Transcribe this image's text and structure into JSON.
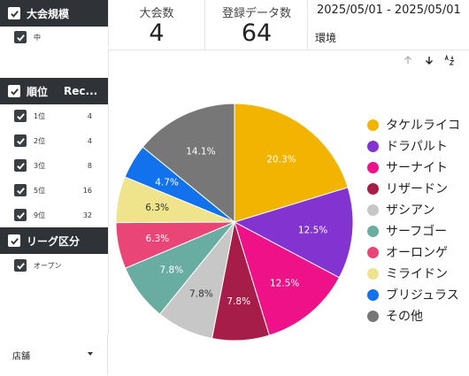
{
  "filters": {
    "tournament_scale": {
      "header": "大会規模",
      "items": [
        {
          "label": "中",
          "checked": true
        }
      ]
    },
    "rank": {
      "header": "順位",
      "header_col2": "Rec...",
      "items": [
        {
          "label": "1位",
          "count": "4",
          "checked": true
        },
        {
          "label": "2位",
          "count": "4",
          "checked": true
        },
        {
          "label": "3位",
          "count": "8",
          "checked": true
        },
        {
          "label": "5位",
          "count": "16",
          "checked": true
        },
        {
          "label": "9位",
          "count": "32",
          "checked": true
        }
      ]
    },
    "league": {
      "header": "リーグ区分",
      "items": [
        {
          "label": "オープン",
          "checked": true
        }
      ]
    },
    "store": {
      "label": "店舗"
    }
  },
  "scorecards": {
    "tournaments": {
      "label": "大会数",
      "value": "4"
    },
    "records": {
      "label": "登録データ数",
      "value": "64"
    }
  },
  "date_range": "2025/05/01 - 2025/05/01",
  "env_label": "環境",
  "toolbar_icons": [
    "arrow-up-icon",
    "arrow-down-icon",
    "sort-az-icon"
  ],
  "chart_data": {
    "type": "pie",
    "series": [
      {
        "name": "タケルライコ",
        "value": 20.3,
        "label": "20.3%",
        "color": "#f2b400"
      },
      {
        "name": "ドラパルト",
        "value": 12.5,
        "label": "12.5%",
        "color": "#8333d0"
      },
      {
        "name": "サーナイト",
        "value": 12.5,
        "label": "12.5%",
        "color": "#ee1188"
      },
      {
        "name": "リザードン",
        "value": 7.8,
        "label": "7.8%",
        "color": "#a51d48"
      },
      {
        "name": "ザシアン",
        "value": 7.8,
        "label": "7.8%",
        "color": "#c7c7c7"
      },
      {
        "name": "サーフゴー",
        "value": 7.8,
        "label": "7.8%",
        "color": "#69aca2"
      },
      {
        "name": "オーロンゲ",
        "value": 6.3,
        "label": "6.3%",
        "color": "#ea4577"
      },
      {
        "name": "ミライドン",
        "value": 6.3,
        "label": "6.3%",
        "color": "#efe48c"
      },
      {
        "name": "ブリジュラス",
        "value": 4.7,
        "label": "4.7%",
        "color": "#1272ee"
      },
      {
        "name": "その他",
        "value": 14.1,
        "label": "14.1%",
        "color": "#777777"
      }
    ],
    "legend_position": "right"
  }
}
